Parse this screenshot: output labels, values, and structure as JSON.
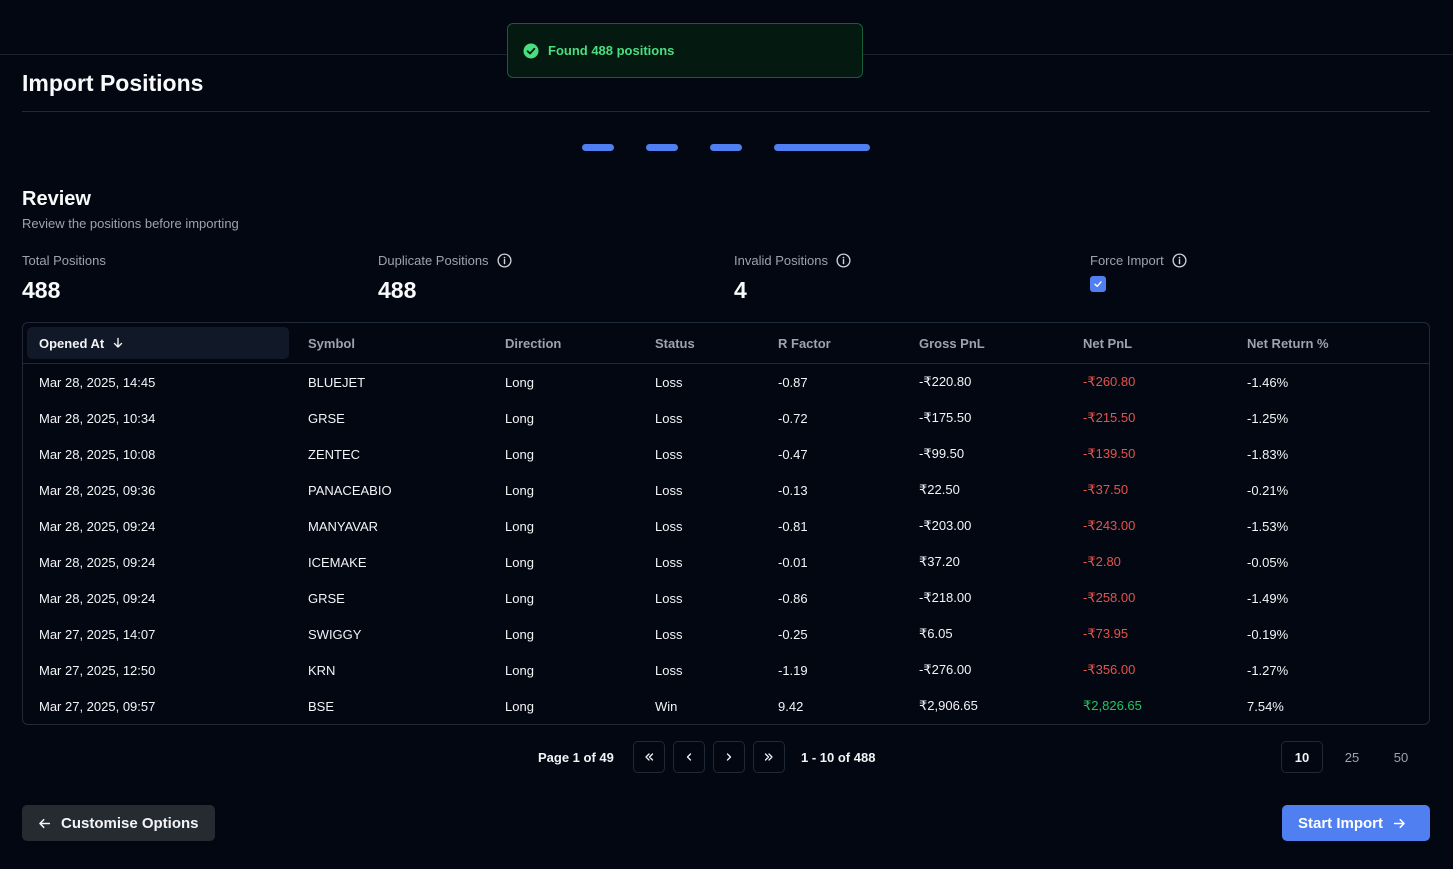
{
  "toast": {
    "message": "Found 488 positions",
    "icon": "check-circle-icon",
    "color": "#4ade80"
  },
  "page": {
    "title": "Import Positions"
  },
  "stepper": {
    "steps": 4,
    "current": 4
  },
  "review": {
    "title": "Review",
    "subtitle": "Review the positions before importing"
  },
  "stats": {
    "total": {
      "label": "Total Positions",
      "value": "488"
    },
    "duplicate": {
      "label": "Duplicate Positions",
      "value": "488"
    },
    "invalid": {
      "label": "Invalid Positions",
      "value": "4"
    },
    "force": {
      "label": "Force Import",
      "checked": true
    }
  },
  "table": {
    "columns": [
      "Opened At",
      "Symbol",
      "Direction",
      "Status",
      "R Factor",
      "Gross PnL",
      "Net PnL",
      "Net Return %"
    ],
    "sort": {
      "column": "Opened At",
      "direction": "desc"
    },
    "rows": [
      [
        "Mar 28, 2025, 14:45",
        "BLUEJET",
        "Long",
        "Loss",
        "-0.87",
        "-₹220.80",
        "-₹260.80",
        "-1.46%"
      ],
      [
        "Mar 28, 2025, 10:34",
        "GRSE",
        "Long",
        "Loss",
        "-0.72",
        "-₹175.50",
        "-₹215.50",
        "-1.25%"
      ],
      [
        "Mar 28, 2025, 10:08",
        "ZENTEC",
        "Long",
        "Loss",
        "-0.47",
        "-₹99.50",
        "-₹139.50",
        "-1.83%"
      ],
      [
        "Mar 28, 2025, 09:36",
        "PANACEABIO",
        "Long",
        "Loss",
        "-0.13",
        "₹22.50",
        "-₹37.50",
        "-0.21%"
      ],
      [
        "Mar 28, 2025, 09:24",
        "MANYAVAR",
        "Long",
        "Loss",
        "-0.81",
        "-₹203.00",
        "-₹243.00",
        "-1.53%"
      ],
      [
        "Mar 28, 2025, 09:24",
        "ICEMAKE",
        "Long",
        "Loss",
        "-0.01",
        "₹37.20",
        "-₹2.80",
        "-0.05%"
      ],
      [
        "Mar 28, 2025, 09:24",
        "GRSE",
        "Long",
        "Loss",
        "-0.86",
        "-₹218.00",
        "-₹258.00",
        "-1.49%"
      ],
      [
        "Mar 27, 2025, 14:07",
        "SWIGGY",
        "Long",
        "Loss",
        "-0.25",
        "₹6.05",
        "-₹73.95",
        "-0.19%"
      ],
      [
        "Mar 27, 2025, 12:50",
        "KRN",
        "Long",
        "Loss",
        "-1.19",
        "-₹276.00",
        "-₹356.00",
        "-1.27%"
      ],
      [
        "Mar 27, 2025, 09:57",
        "BSE",
        "Long",
        "Win",
        "9.42",
        "₹2,906.65",
        "₹2,826.65",
        "7.54%"
      ]
    ]
  },
  "pagination": {
    "page_label": "Page 1 of 49",
    "range_label": "1 - 10 of 488",
    "page_sizes": [
      "10",
      "25",
      "50"
    ],
    "selected_size": "10"
  },
  "actions": {
    "back_label": "Customise Options",
    "start_label": "Start Import"
  },
  "colors": {
    "accent": "#4f7ff0",
    "negative": "#e5534b",
    "positive": "#22c55e",
    "background": "#030712"
  }
}
